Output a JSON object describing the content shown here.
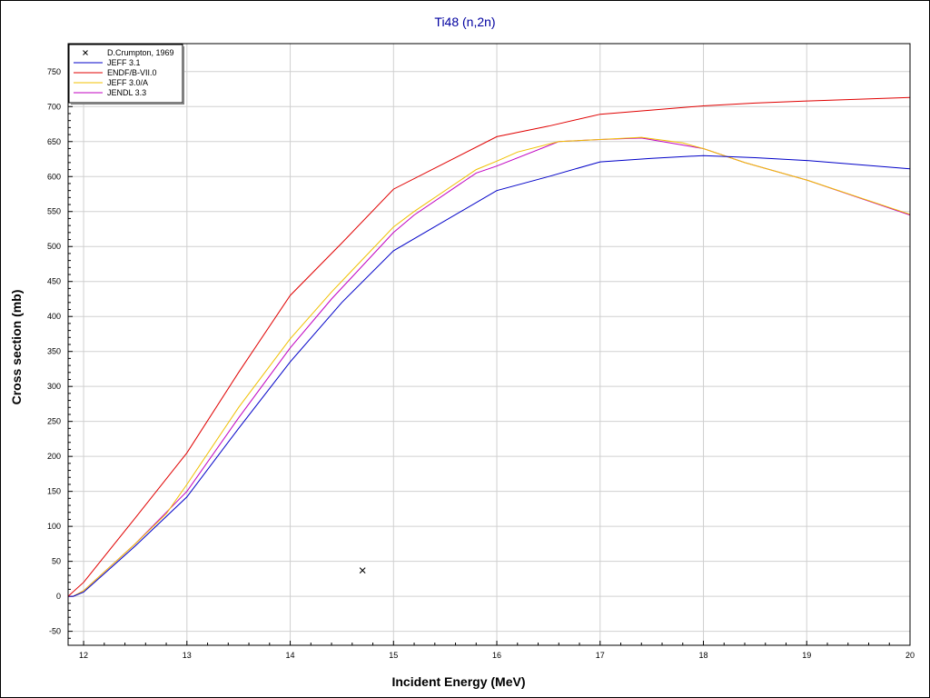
{
  "colors": {
    "title": "#0000a0",
    "grid": "#d0d0d0",
    "jeff31": "#0000c8",
    "endfb7": "#e00000",
    "jeff30a": "#f0c000",
    "jendl33": "#c000c0",
    "exp": "#000000"
  },
  "chart_data": {
    "type": "line",
    "title": "Ti48 (n,2n)",
    "xlabel": "Incident Energy (MeV)",
    "ylabel": "Cross section (mb)",
    "xlim": [
      11.85,
      20
    ],
    "ylim": [
      -70,
      790
    ],
    "x_ticks": [
      12,
      13,
      14,
      15,
      16,
      17,
      18,
      19,
      20
    ],
    "y_ticks": [
      -50,
      0,
      50,
      100,
      150,
      200,
      250,
      300,
      350,
      400,
      450,
      500,
      550,
      600,
      650,
      700,
      750
    ],
    "grid": true,
    "legend_position": "top-left",
    "legend": [
      {
        "label": "D.Crumpton, 1969",
        "marker": "x",
        "color_key": "exp"
      },
      {
        "label": "JEFF 3.1",
        "color_key": "jeff31"
      },
      {
        "label": "ENDF/B-VII.0",
        "color_key": "endfb7"
      },
      {
        "label": "JEFF 3.0/A",
        "color_key": "jeff30a"
      },
      {
        "label": "JENDL 3.3",
        "color_key": "jendl33"
      }
    ],
    "series": [
      {
        "name": "JENDL 3.3",
        "color_key": "jendl33",
        "x": [
          11.85,
          11.9,
          12.0,
          12.5,
          12.8,
          13.0,
          13.5,
          14.0,
          14.4,
          15.0,
          15.2,
          15.8,
          16.0,
          16.6,
          17.0,
          17.4,
          18.0,
          18.4,
          19.0,
          20.0
        ],
        "y": [
          0,
          0,
          8,
          75,
          120,
          150,
          255,
          355,
          425,
          520,
          545,
          605,
          615,
          650,
          653,
          655,
          640,
          620,
          595,
          545
        ]
      },
      {
        "name": "JEFF 3.0/A",
        "color_key": "jeff30a",
        "x": [
          11.85,
          11.9,
          12.0,
          12.5,
          12.8,
          13.0,
          13.5,
          14.0,
          14.4,
          15.0,
          15.2,
          15.8,
          16.0,
          16.2,
          16.6,
          17.0,
          17.4,
          17.8,
          18.0,
          18.4,
          19.0,
          20.0
        ],
        "y": [
          0,
          0,
          8,
          75,
          118,
          160,
          270,
          368,
          435,
          528,
          550,
          610,
          622,
          635,
          650,
          653,
          656,
          648,
          640,
          620,
          595,
          546
        ]
      },
      {
        "name": "JEFF 3.1",
        "color_key": "jeff31",
        "x": [
          11.85,
          11.9,
          12.0,
          12.5,
          13.0,
          13.5,
          14.0,
          14.5,
          15.0,
          16.0,
          16.5,
          17.0,
          17.5,
          18.0,
          18.5,
          19.0,
          20.0
        ],
        "y": [
          0,
          0,
          6,
          72,
          142,
          240,
          335,
          420,
          494,
          580,
          600,
          621,
          626,
          630,
          627,
          623,
          611
        ]
      },
      {
        "name": "ENDF/B-VII.0",
        "color_key": "endfb7",
        "x": [
          11.85,
          12.0,
          12.5,
          13.0,
          13.5,
          14.0,
          14.5,
          15.0,
          16.0,
          16.5,
          17.0,
          17.5,
          18.0,
          18.5,
          19.0,
          20.0
        ],
        "y": [
          0,
          20,
          112,
          205,
          320,
          430,
          505,
          582,
          657,
          672,
          689,
          695,
          701,
          705,
          708,
          713
        ]
      }
    ],
    "points": [
      {
        "name": "D.Crumpton, 1969",
        "color_key": "exp",
        "x": [
          14.7
        ],
        "y": [
          37
        ]
      }
    ]
  }
}
